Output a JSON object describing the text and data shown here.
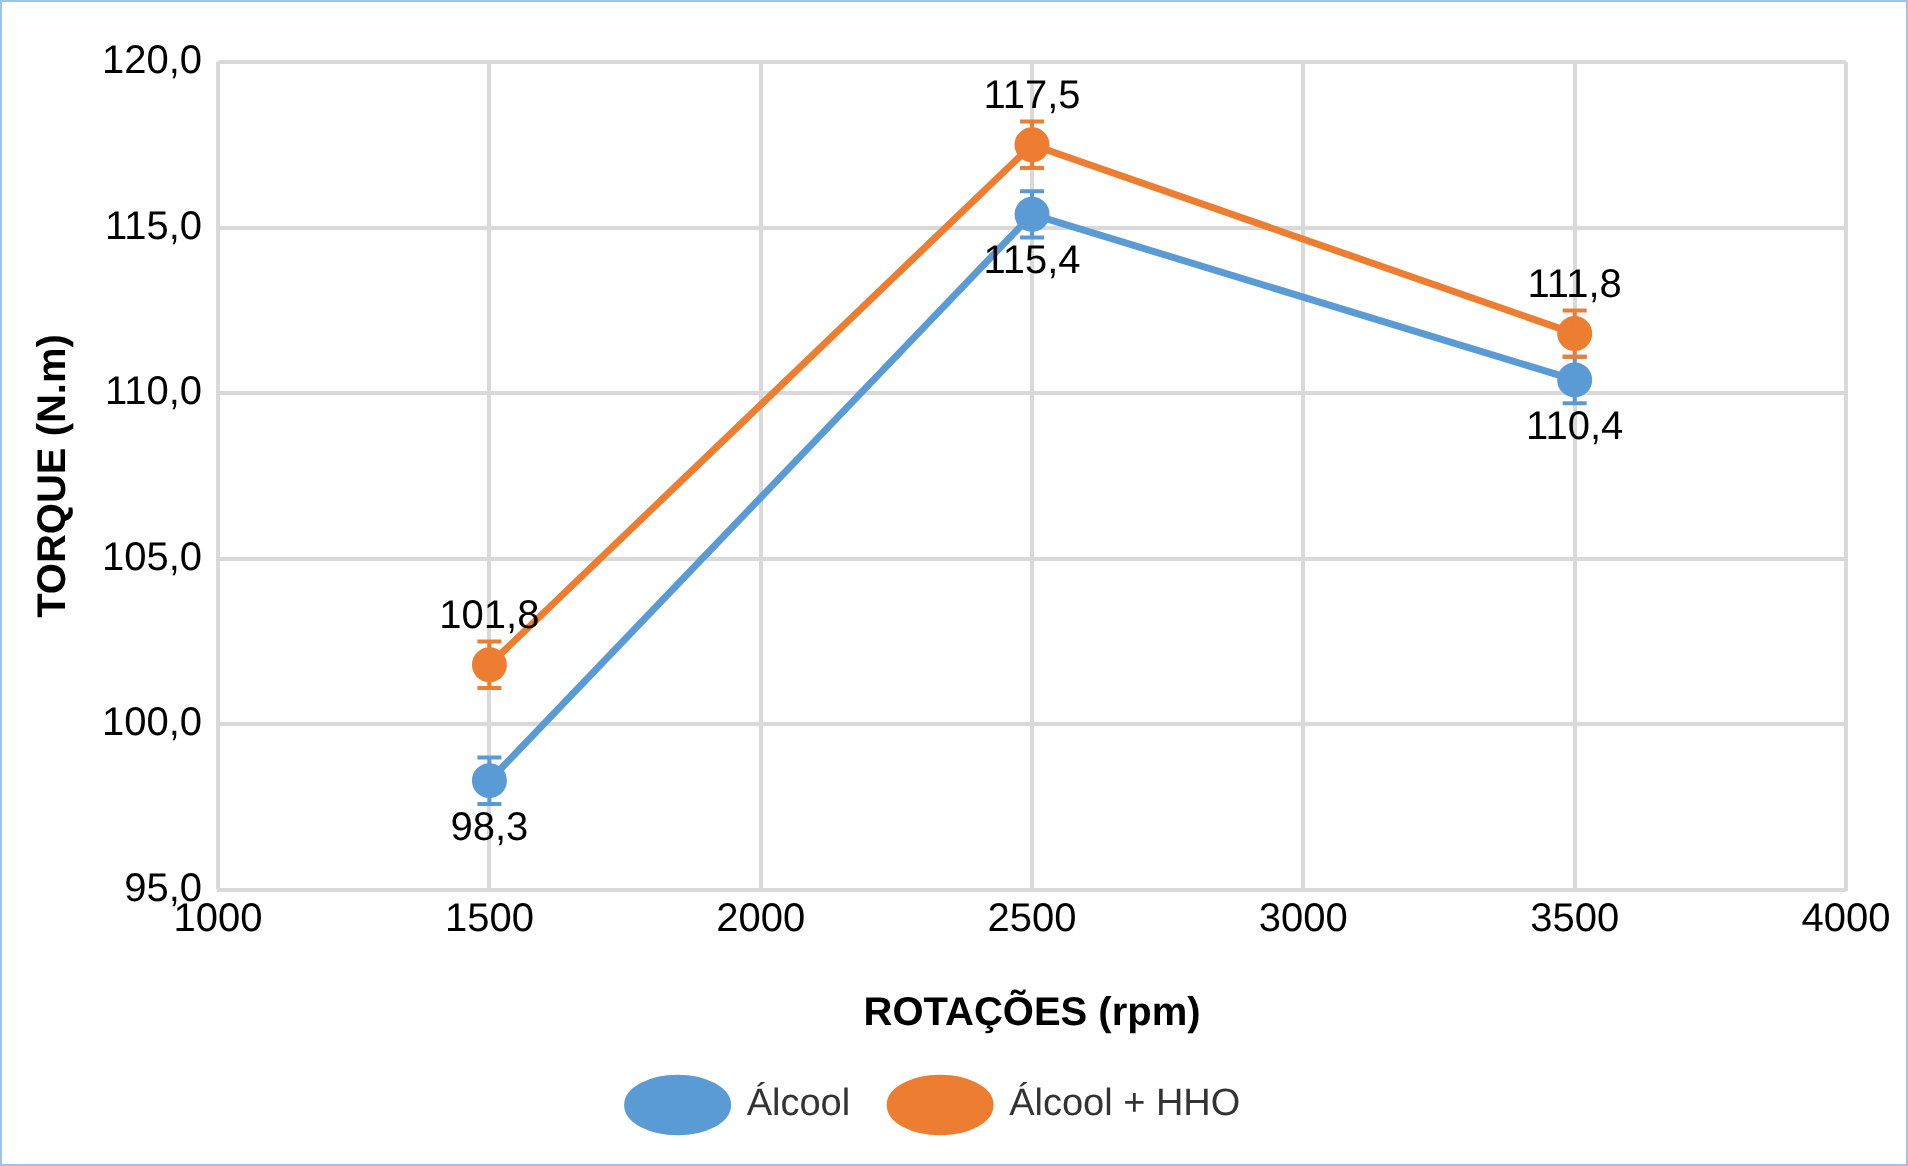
{
  "chart_data": {
    "type": "line",
    "xlabel": "ROTAÇÕES (rpm)",
    "ylabel": "TORQUE (N.m)",
    "x": [
      1500,
      2500,
      3500
    ],
    "series": [
      {
        "name": "Álcool",
        "color": "#5b9bd5",
        "values": [
          98.3,
          115.4,
          110.4
        ],
        "errors": [
          0.7,
          0.7,
          0.7
        ],
        "value_labels": [
          "98,3",
          "115,4",
          "110,4"
        ]
      },
      {
        "name": "Álcool + HHO",
        "color": "#ed7d31",
        "values": [
          101.8,
          117.5,
          111.8
        ],
        "errors": [
          0.7,
          0.7,
          0.7
        ],
        "value_labels": [
          "101,8",
          "117,5",
          "111,8"
        ]
      }
    ],
    "xlim": [
      1000,
      4000
    ],
    "xticks": [
      1000,
      1500,
      2000,
      2500,
      3000,
      3500,
      4000
    ],
    "ylim": [
      95,
      120
    ],
    "yticks": [
      {
        "value": 95,
        "label": "95,0"
      },
      {
        "value": 100,
        "label": "100,0"
      },
      {
        "value": 105,
        "label": "105,0"
      },
      {
        "value": 110,
        "label": "110,0"
      },
      {
        "value": 115,
        "label": "115,0"
      },
      {
        "value": 120,
        "label": "120,0"
      }
    ],
    "grid": true,
    "legend": "bottom",
    "marker": "circle",
    "line_style": "solid"
  }
}
